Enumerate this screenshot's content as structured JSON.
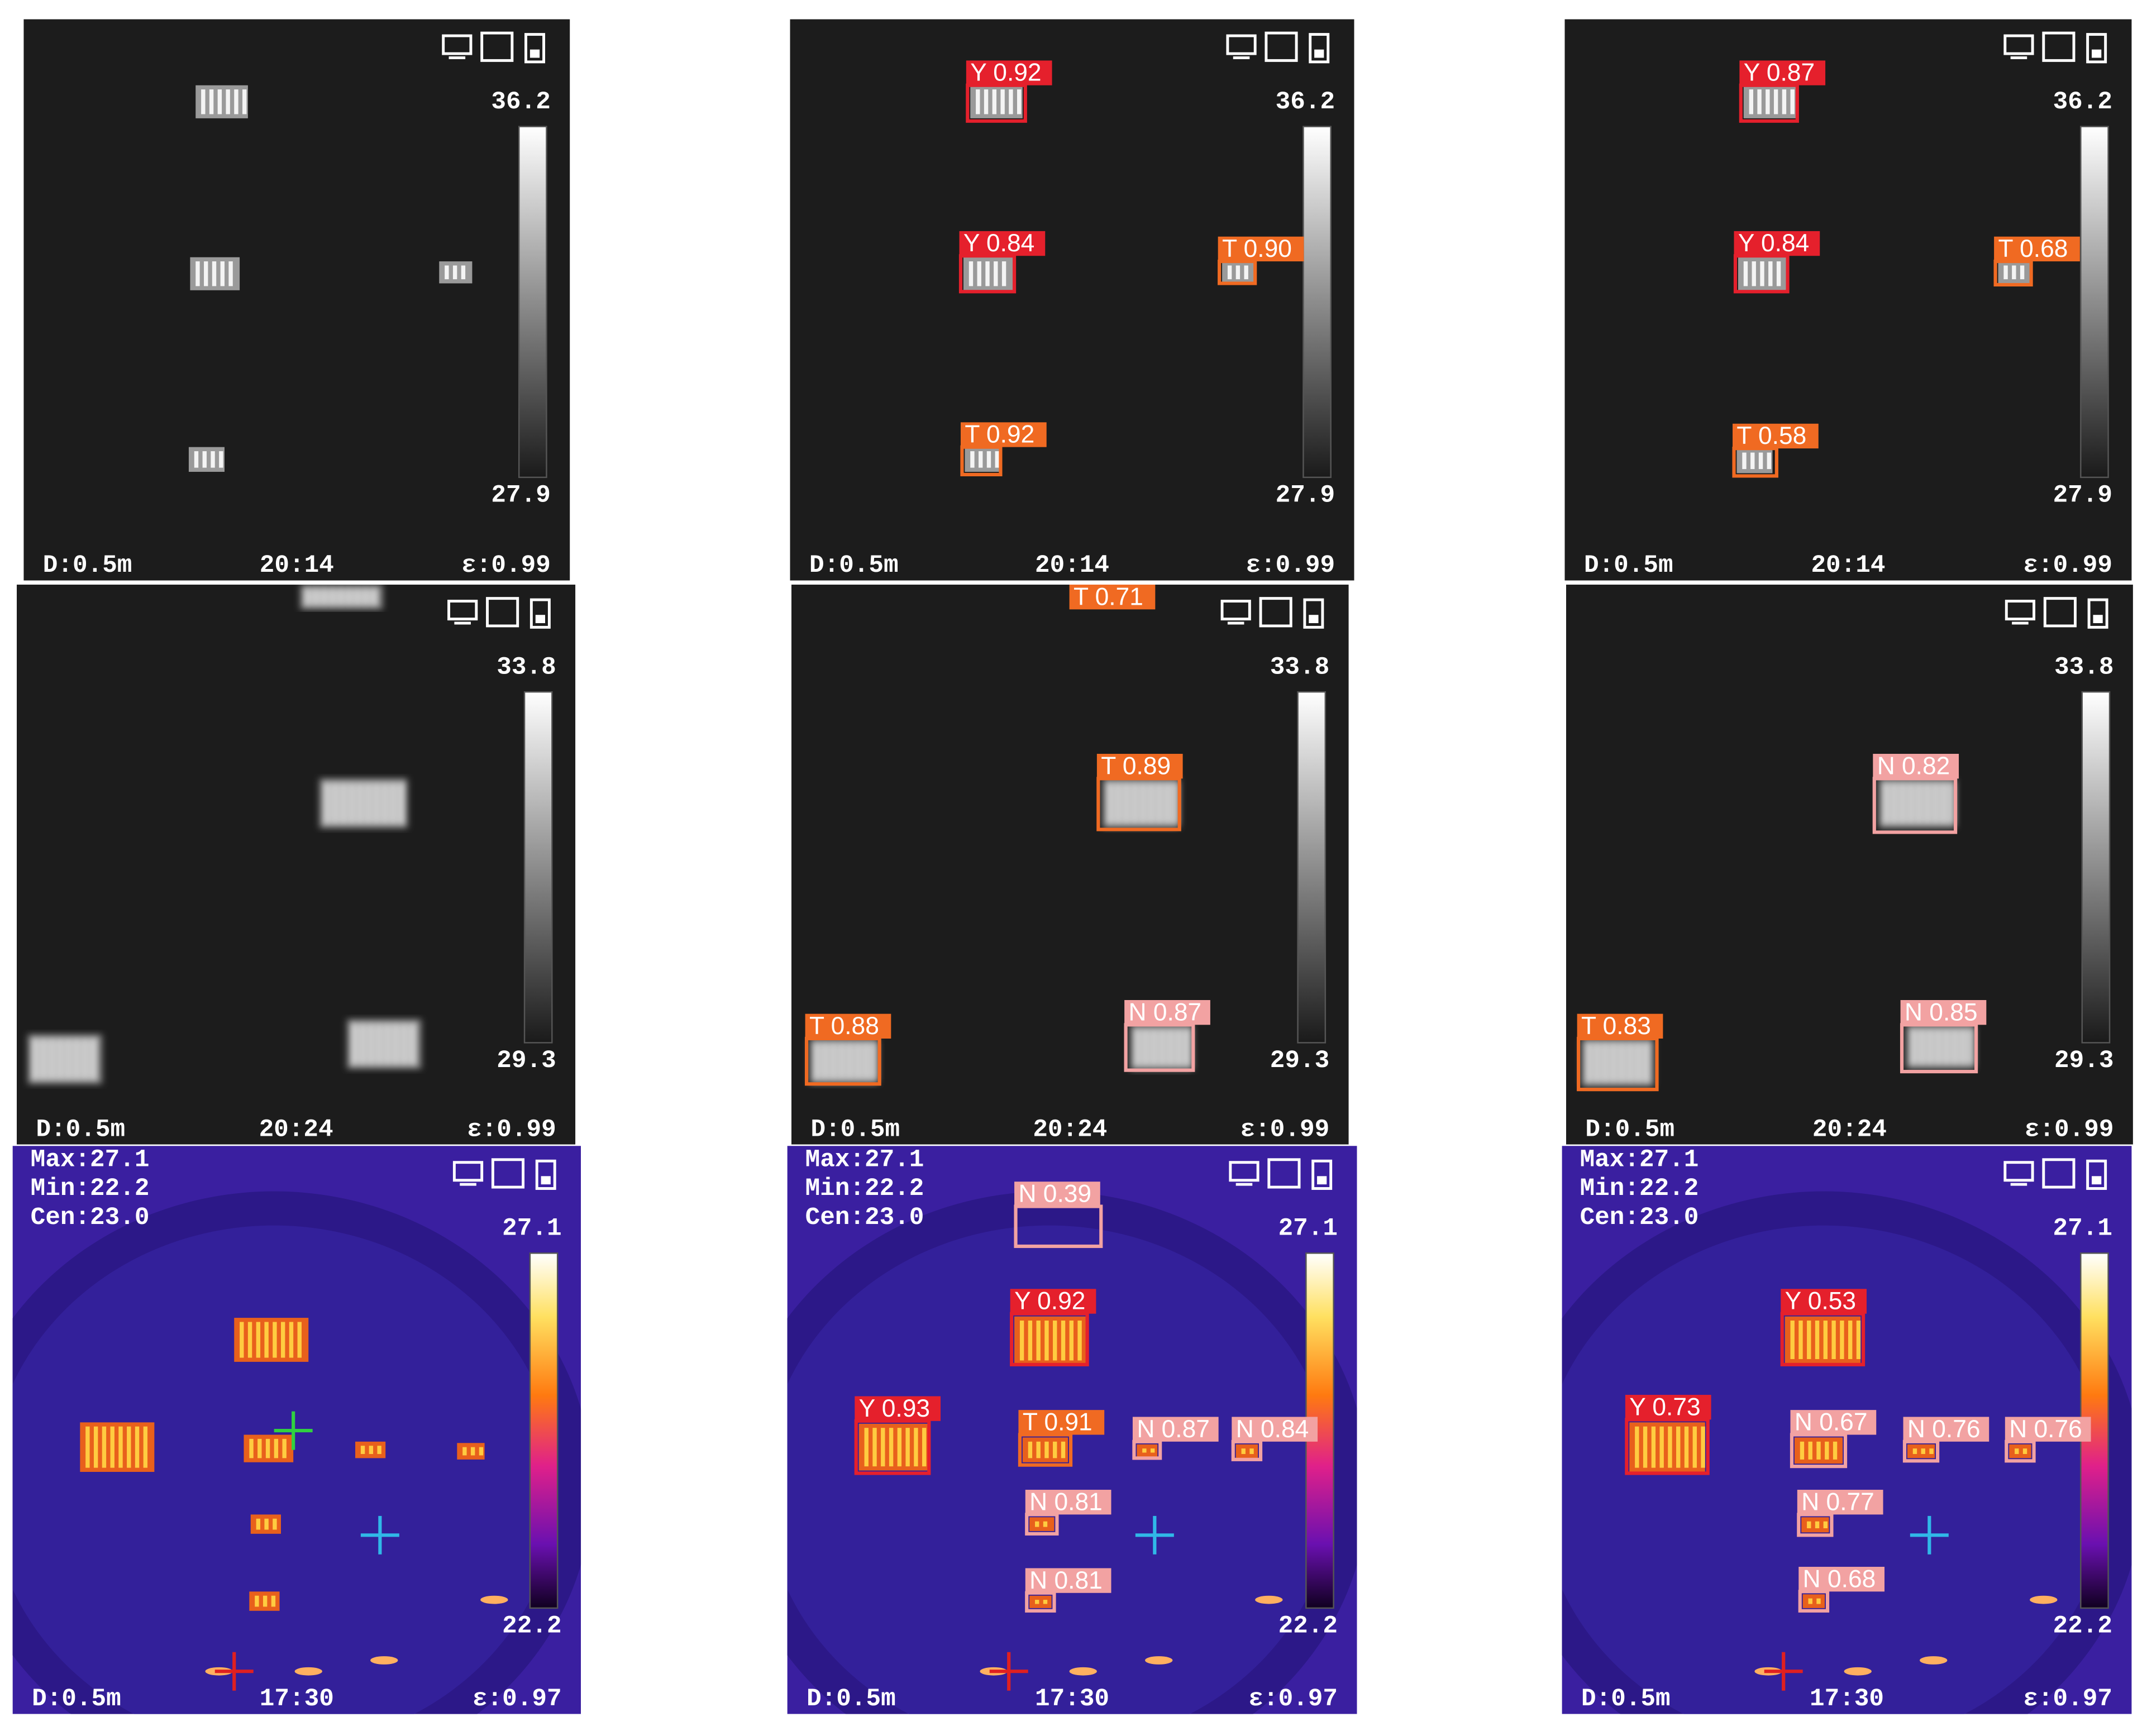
{
  "panels": [
    {
      "scale_max": "36.2",
      "scale_min": "27.9",
      "distance": "D:0.5m",
      "time": "20:14",
      "emissivity": "ε:0.99",
      "detections": []
    },
    {
      "scale_max": "36.2",
      "scale_min": "27.9",
      "distance": "D:0.5m",
      "time": "20:14",
      "emissivity": "ε:0.99",
      "detections": [
        "Y 0.92",
        "Y 0.84",
        "T 0.90",
        "T 0.92"
      ]
    },
    {
      "scale_max": "36.2",
      "scale_min": "27.9",
      "distance": "D:0.5m",
      "time": "20:14",
      "emissivity": "ε:0.99",
      "detections": [
        "Y 0.87",
        "Y 0.84",
        "T 0.68",
        "T 0.58"
      ]
    },
    {
      "scale_max": "33.8",
      "scale_min": "29.3",
      "distance": "D:0.5m",
      "time": "20:24",
      "emissivity": "ε:0.99",
      "detections": []
    },
    {
      "scale_max": "33.8",
      "scale_min": "29.3",
      "distance": "D:0.5m",
      "time": "20:24",
      "emissivity": "ε:0.99",
      "detections": [
        "T 0.71",
        "T 0.89",
        "T 0.88",
        "N 0.87"
      ]
    },
    {
      "scale_max": "33.8",
      "scale_min": "29.3",
      "distance": "D:0.5m",
      "time": "20:24",
      "emissivity": "ε:0.99",
      "detections": [
        "N 0.82",
        "T 0.83",
        "N 0.85"
      ]
    },
    {
      "readouts": [
        "Max:27.1",
        "Min:22.2",
        "Cen:23.0"
      ],
      "scale_max": "27.1",
      "scale_min": "22.2",
      "distance": "D:0.5m",
      "time": "17:30",
      "emissivity": "ε:0.97",
      "detections": []
    },
    {
      "readouts": [
        "Max:27.1",
        "Min:22.2",
        "Cen:23.0"
      ],
      "scale_max": "27.1",
      "scale_min": "22.2",
      "distance": "D:0.5m",
      "time": "17:30",
      "emissivity": "ε:0.97",
      "detections": [
        "N 0.39",
        "Y 0.92",
        "Y 0.93",
        "T 0.91",
        "N 0.87",
        "N 0.84",
        "N 0.81",
        "N 0.81"
      ]
    },
    {
      "readouts": [
        "Max:27.1",
        "Min:22.2",
        "Cen:23.0"
      ],
      "scale_max": "27.1",
      "scale_min": "22.2",
      "distance": "D:0.5m",
      "time": "17:30",
      "emissivity": "ε:0.97",
      "detections": [
        "Y 0.53",
        "Y 0.73",
        "N 0.67",
        "N 0.76",
        "N 0.76",
        "N 0.77",
        "N 0.68"
      ]
    }
  ]
}
